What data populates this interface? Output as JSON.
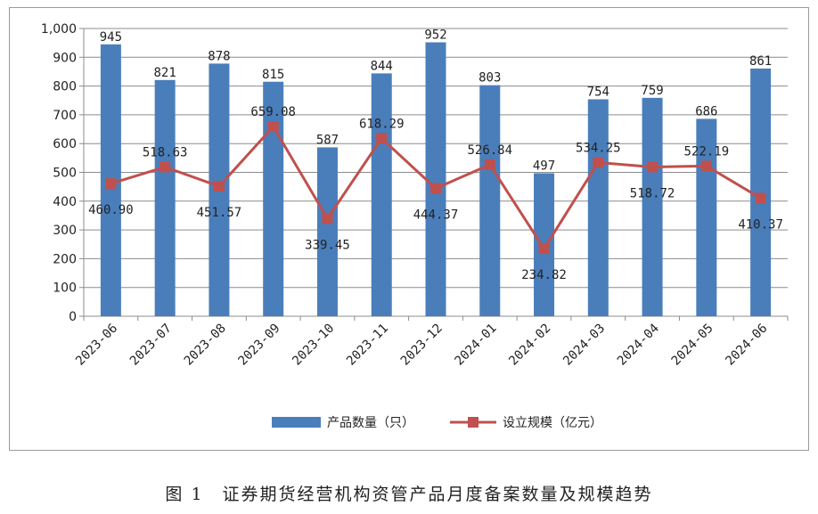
{
  "caption": "图 1　证券期货经营机构资管产品月度备案数量及规模趋势",
  "chart_data": {
    "type": "bar",
    "categories": [
      "2023-06",
      "2023-07",
      "2023-08",
      "2023-09",
      "2023-10",
      "2023-11",
      "2023-12",
      "2024-01",
      "2024-02",
      "2024-03",
      "2024-04",
      "2024-05",
      "2024-06"
    ],
    "series": [
      {
        "name": "产品数量（只）",
        "type": "bar",
        "color": "#4a7ebb",
        "values": [
          945,
          821,
          878,
          815,
          587,
          844,
          952,
          803,
          497,
          754,
          759,
          686,
          861
        ],
        "labels": [
          "945",
          "821",
          "878",
          "815",
          "587",
          "844",
          "952",
          "803",
          "497",
          "754",
          "759",
          "686",
          "861"
        ]
      },
      {
        "name": "设立规模（亿元）",
        "type": "line",
        "color": "#c0504d",
        "values": [
          460.9,
          518.63,
          451.57,
          659.08,
          339.45,
          618.29,
          444.37,
          526.84,
          234.82,
          534.25,
          518.72,
          522.19,
          410.37
        ],
        "labels": [
          "460.90",
          "518.63",
          "451.57",
          "659.08",
          "339.45",
          "618.29",
          "444.37",
          "526.84",
          "234.82",
          "534.25",
          "518.72",
          "522.19",
          "410.37"
        ]
      }
    ],
    "y_ticks": [
      "0",
      "100",
      "200",
      "300",
      "400",
      "500",
      "600",
      "700",
      "800",
      "900",
      "1,000"
    ],
    "ylim": [
      0,
      1000
    ],
    "grid": true,
    "legend_position": "bottom"
  }
}
